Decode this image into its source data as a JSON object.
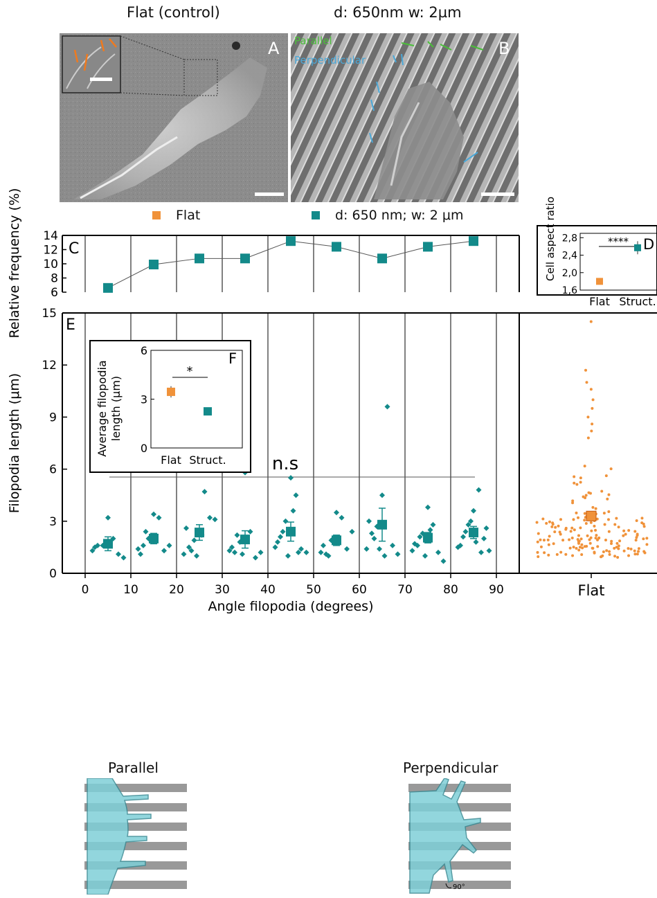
{
  "titles": {
    "left": "Flat (control)",
    "right": "d: 650nm w: 2µm"
  },
  "sem_panels": {
    "a_letter": "A",
    "b_letter": "B",
    "b_parallel_label": "Parallel",
    "b_perpendicular_label": "Perpendicular"
  },
  "colors": {
    "flat": "#f0923a",
    "structured": "#138a8a",
    "parallel_arrow": "#4bbf3a",
    "perpendicular_arrow": "#4aa8d8",
    "flat_arrow": "#f07a1e"
  },
  "legend": {
    "flat": "Flat",
    "structured": "d: 650 nm; w: 2 μm"
  },
  "chart_data": [
    {
      "id": "C",
      "type": "line",
      "panel_letter": "C",
      "ylabel": "Relative frequency (%)",
      "x": [
        5,
        15,
        25,
        35,
        45,
        55,
        65,
        75,
        85
      ],
      "series": [
        {
          "values": [
            6.6,
            9.9,
            10.75,
            10.75,
            13.2,
            12.4,
            10.75,
            12.4,
            13.2
          ]
        }
      ],
      "ylim": [
        6,
        14
      ],
      "yticks": [
        "6",
        "8",
        "10",
        "12",
        "14"
      ],
      "xlim": [
        -5,
        95
      ]
    },
    {
      "id": "D",
      "type": "scatter",
      "panel_letter": "D",
      "ylabel": "Cell aspect ratio",
      "categories": [
        "Flat",
        "Struct."
      ],
      "values": [
        1.8,
        2.57
      ],
      "errors": [
        0.07,
        0.15
      ],
      "ylim": [
        1.6,
        2.9
      ],
      "yticks": [
        "1,6",
        "2,0",
        "2,4",
        "2,8"
      ],
      "significance": "****"
    },
    {
      "id": "E",
      "type": "scatter",
      "panel_letter": "E",
      "ylabel": "Filopodia length (μm)",
      "xlabel": "Angle filopodia (degrees)",
      "ylim": [
        0,
        15
      ],
      "yticks": [
        "0",
        "3",
        "6",
        "9",
        "12",
        "15"
      ],
      "xticks": [
        "0",
        "10",
        "20",
        "30",
        "40",
        "50",
        "60",
        "70",
        "80",
        "90"
      ],
      "xlim": [
        -5,
        95
      ],
      "significance": "n.s",
      "bins_x": [
        5,
        15,
        25,
        35,
        45,
        55,
        65,
        75,
        85
      ],
      "means": [
        1.7,
        2.0,
        2.35,
        1.95,
        2.4,
        1.9,
        2.8,
        2.05,
        2.35
      ],
      "errors": [
        0.4,
        0.3,
        0.45,
        0.5,
        0.55,
        0.3,
        0.95,
        0.3,
        0.35
      ],
      "points": [
        [
          1.3,
          1.6,
          1.6,
          3.2,
          2.0,
          1.1,
          0.9,
          1.5
        ],
        [
          1.4,
          1.6,
          2.0,
          3.4,
          3.2,
          1.3,
          1.6,
          1.1,
          2.4
        ],
        [
          1.1,
          1.5,
          1.9,
          2.4,
          4.7,
          3.2,
          3.1,
          2.6,
          1.3,
          1.0,
          2.2
        ],
        [
          1.3,
          1.2,
          1.8,
          5.8,
          2.4,
          0.9,
          1.2,
          1.5,
          2.2,
          1.1
        ],
        [
          1.5,
          2.1,
          3.0,
          5.5,
          4.5,
          1.4,
          1.2,
          1.8,
          2.4,
          1.0,
          3.6,
          1.2
        ],
        [
          1.2,
          1.1,
          1.9,
          3.5,
          3.2,
          1.4,
          2.4,
          1.6,
          1.0,
          1.8
        ],
        [
          1.4,
          2.3,
          2.7,
          4.5,
          9.6,
          1.6,
          1.1,
          3.0,
          2.0,
          1.4,
          1.0
        ],
        [
          1.3,
          1.6,
          2.3,
          3.8,
          2.8,
          1.2,
          0.7,
          1.7,
          2.1,
          1.0,
          2.5
        ],
        [
          1.5,
          2.1,
          2.8,
          3.6,
          4.8,
          2.0,
          1.3,
          1.6,
          2.4,
          3.0,
          1.8,
          1.2,
          2.6
        ]
      ]
    },
    {
      "id": "E-flat",
      "type": "scatter",
      "category": "Flat",
      "mean": 3.3,
      "error": 0.25,
      "ylim": [
        0,
        15
      ]
    },
    {
      "id": "F",
      "type": "scatter",
      "panel_letter": "F",
      "ylabel_line1": "Average filopodia",
      "ylabel_line2": "length (μm)",
      "categories": [
        "Flat",
        "Struct."
      ],
      "values": [
        3.45,
        2.25
      ],
      "errors": [
        0.35,
        0.2
      ],
      "ylim": [
        0,
        6
      ],
      "yticks": [
        "0",
        "3",
        "6"
      ],
      "significance": "*"
    }
  ],
  "schematics": {
    "parallel_label": "Parallel",
    "perpendicular_label": "Perpendicular",
    "angle_label": "90°"
  }
}
